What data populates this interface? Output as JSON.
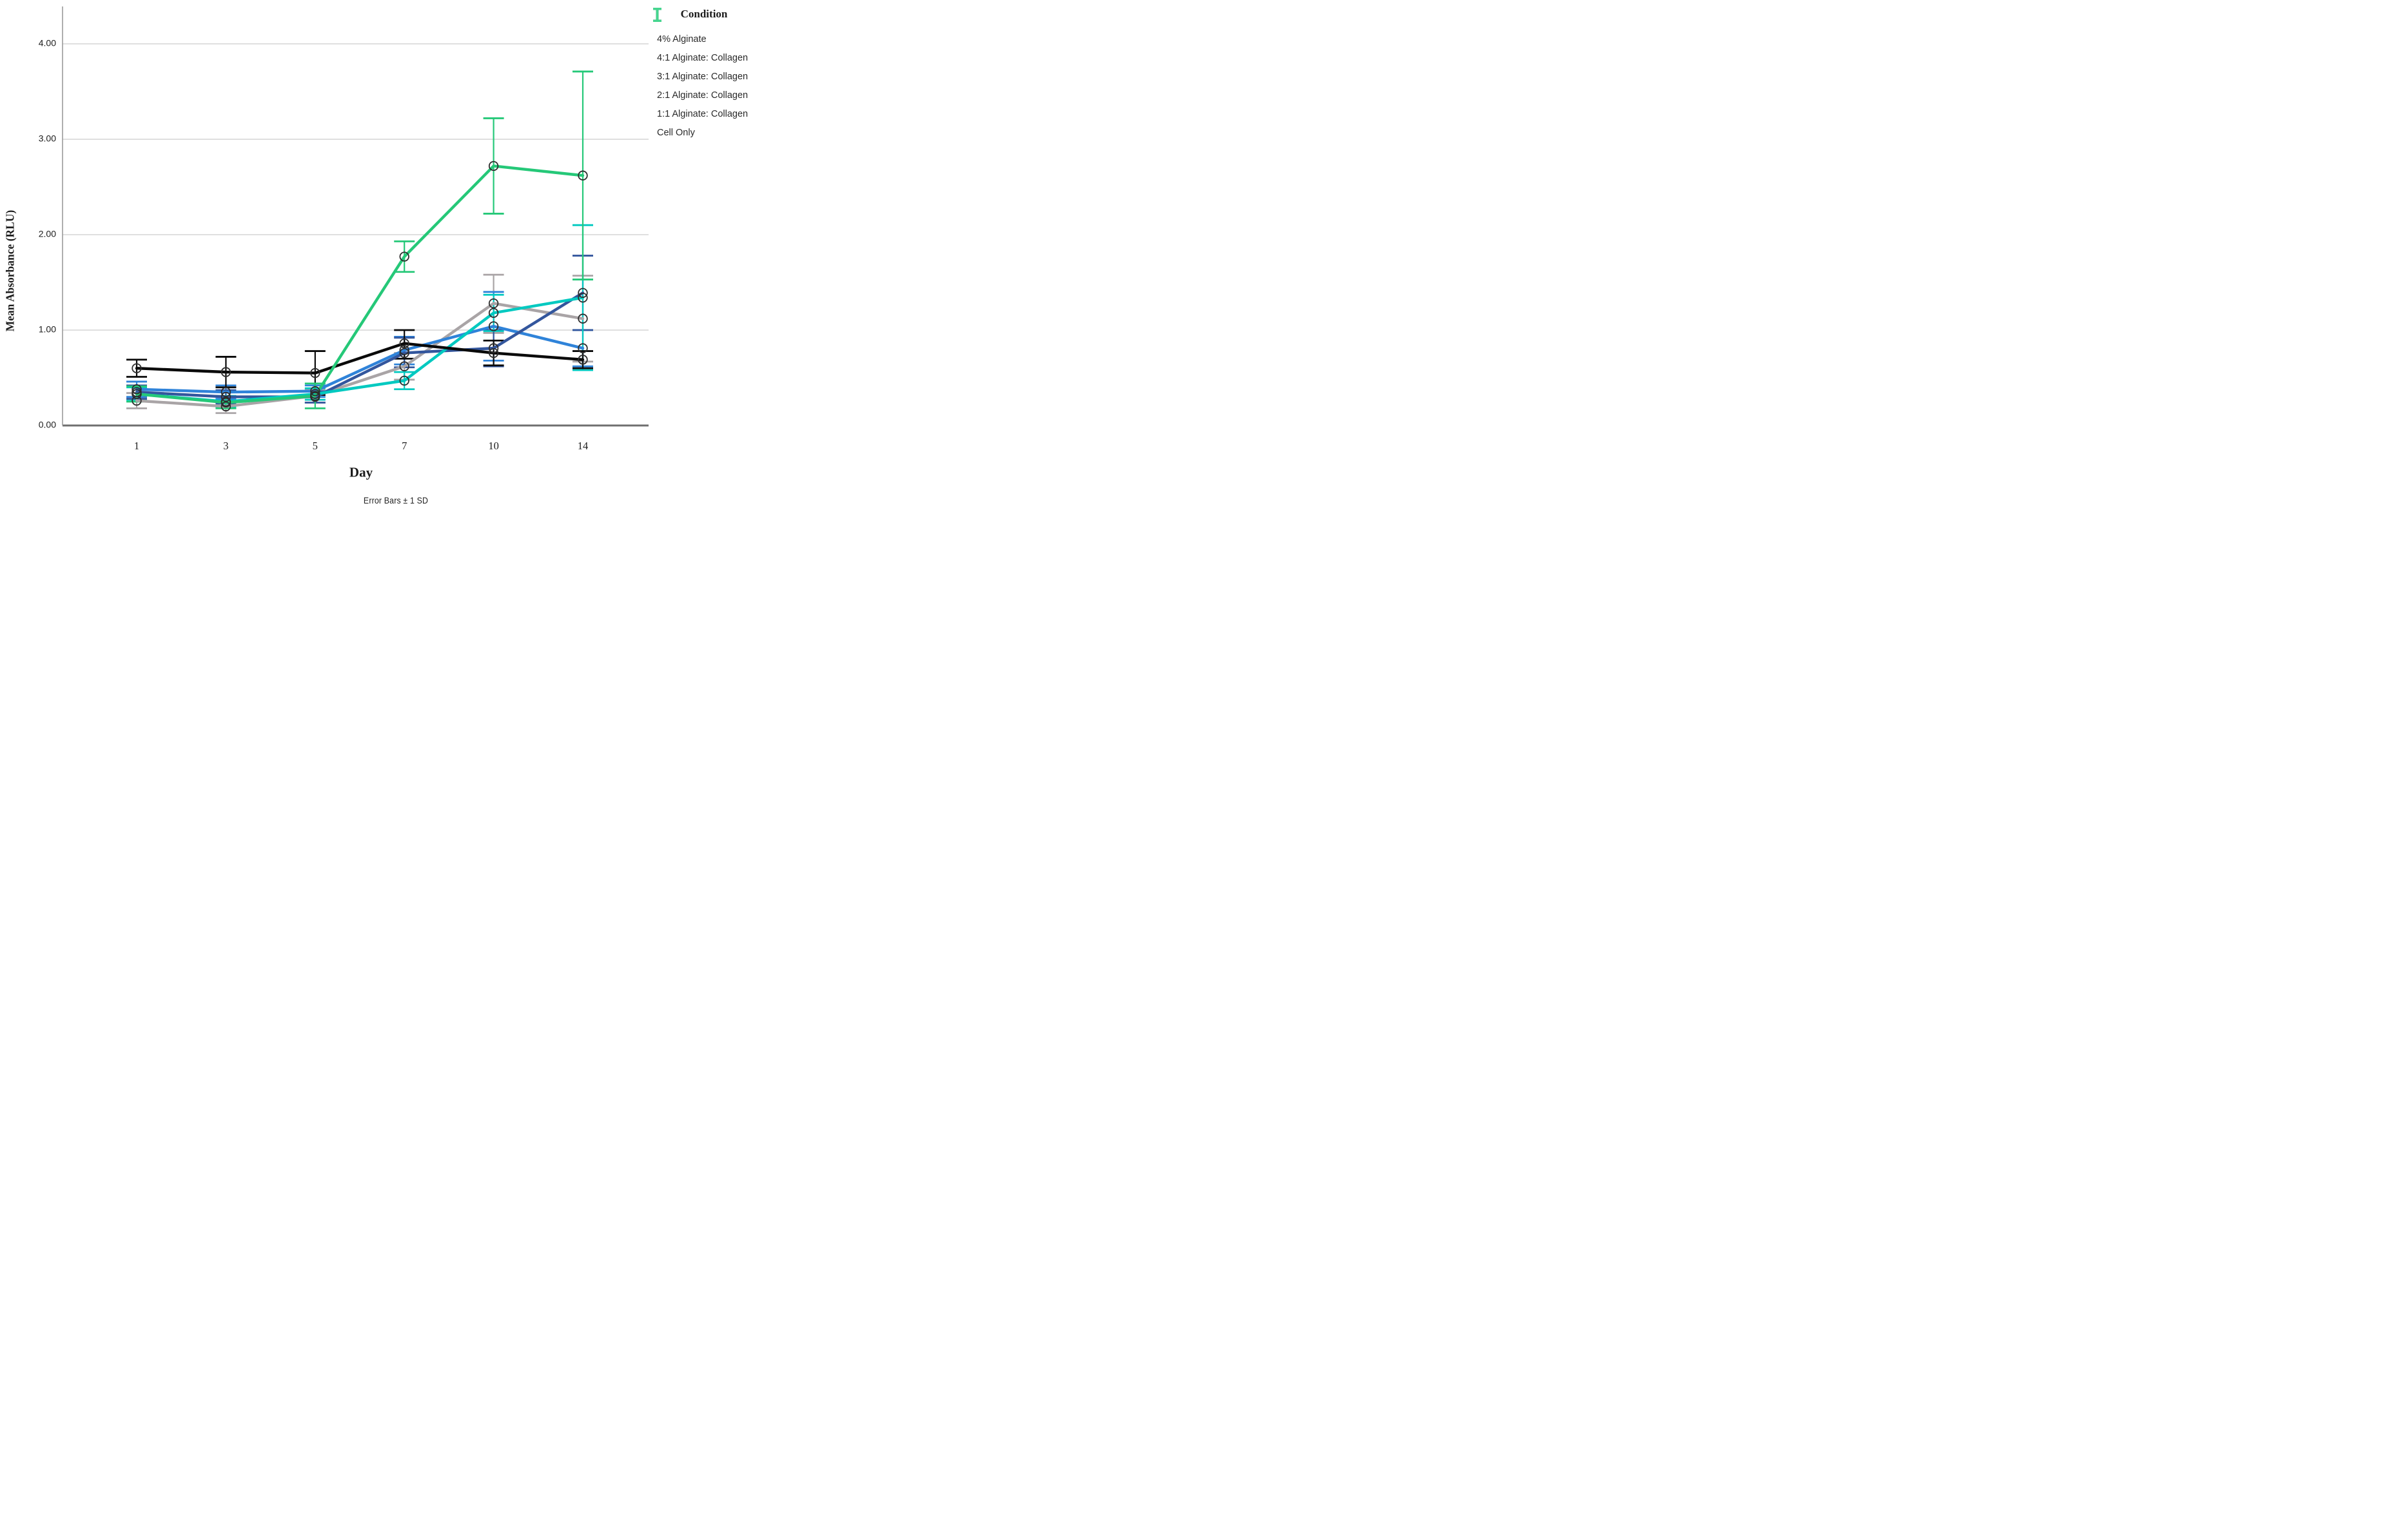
{
  "chart_data": {
    "type": "line",
    "title": "",
    "xlabel": "Day",
    "ylabel": "Mean Absorbance (RLU)",
    "footnote": "Error Bars ± 1 SD",
    "legend_title": "Condition",
    "legend_position": "right",
    "grid": true,
    "categories": [
      "1",
      "3",
      "5",
      "7",
      "10",
      "14"
    ],
    "yticks": [
      {
        "value": 0,
        "label": "0.00"
      },
      {
        "value": 1,
        "label": "1.00"
      },
      {
        "value": 2,
        "label": "2.00"
      },
      {
        "value": 3,
        "label": "3.00"
      },
      {
        "value": 4,
        "label": "4.00"
      }
    ],
    "ylim": [
      0,
      4.4
    ],
    "error_bar_meaning": "±1 SD",
    "series": [
      {
        "name": "4:1 Alginate: Collagen",
        "legend_order": 2,
        "color": "#a9a4a6",
        "legend_color": "#b3aeb0",
        "values": [
          0.26,
          0.2,
          0.31,
          0.62,
          1.28,
          1.12
        ],
        "err_low": [
          0.18,
          0.13,
          0.24,
          0.48,
          0.97,
          0.67
        ],
        "err_high": [
          0.34,
          0.27,
          0.38,
          0.76,
          1.58,
          1.57
        ]
      },
      {
        "name": "4% Alginate",
        "legend_order": 1,
        "color": "#2f83d9",
        "legend_color": "#587fd0",
        "values": [
          0.38,
          0.35,
          0.36,
          0.79,
          1.04,
          0.81
        ],
        "err_low": [
          0.3,
          0.28,
          0.3,
          0.64,
          0.68,
          0.62
        ],
        "err_high": [
          0.46,
          0.42,
          0.42,
          0.93,
          1.4,
          1.0
        ]
      },
      {
        "name": "2:1 Alginate: Collagen",
        "legend_order": 4,
        "color": "#33569d",
        "legend_color": "#33569d",
        "values": [
          0.35,
          0.3,
          0.3,
          0.76,
          0.81,
          1.39
        ],
        "err_low": [
          0.28,
          0.23,
          0.24,
          0.61,
          0.62,
          1.0
        ],
        "err_high": [
          0.42,
          0.37,
          0.36,
          0.92,
          1.0,
          1.78
        ]
      },
      {
        "name": "3:1 Alginate: Collagen",
        "legend_order": 3,
        "color": "#00c9c0",
        "legend_color": "#00d2c8",
        "values": [
          0.33,
          0.25,
          0.33,
          0.47,
          1.18,
          1.34
        ],
        "err_low": [
          0.26,
          0.19,
          0.27,
          0.38,
          0.99,
          0.58
        ],
        "err_high": [
          0.4,
          0.31,
          0.39,
          0.56,
          1.37,
          2.1
        ]
      },
      {
        "name": "1:1 Alginate: Collagen",
        "legend_order": 5,
        "color": "#0a0a0a",
        "legend_color": "#1a1a1a",
        "values": [
          0.6,
          0.56,
          0.55,
          0.86,
          0.76,
          0.69
        ],
        "err_low": [
          0.51,
          0.4,
          0.32,
          0.7,
          0.63,
          0.6
        ],
        "err_high": [
          0.69,
          0.72,
          0.78,
          1.0,
          0.89,
          0.78
        ]
      },
      {
        "name": "Cell Only",
        "legend_order": 6,
        "color": "#25c878",
        "legend_color": "#45d68f",
        "values": [
          0.33,
          0.24,
          0.31,
          1.77,
          2.72,
          2.62
        ],
        "err_low": [
          0.25,
          0.18,
          0.18,
          1.61,
          2.22,
          1.53
        ],
        "err_high": [
          0.41,
          0.3,
          0.44,
          1.93,
          3.22,
          3.71
        ]
      }
    ]
  }
}
